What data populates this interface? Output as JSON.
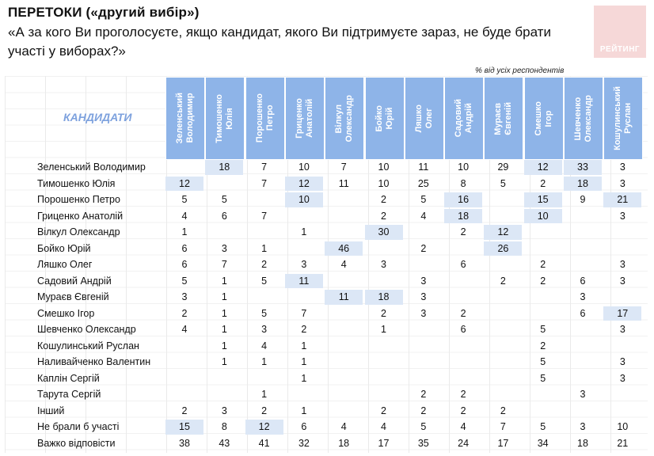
{
  "title": "ПЕРЕТОКИ («другий вибір»)",
  "question": "«А за кого Ви проголосуєте, якщо кандидат, якого Ви підтримуєте зараз, не буде брати участі у виборах?»",
  "logo_text": "РЕЙТИНГ",
  "note": "% від усіх респондентів",
  "candidates_label": "КАНДИДАТИ",
  "colors": {
    "header_bg": "#8eb4e8",
    "highlight": "#dce7f6",
    "label": "#7ea2de"
  },
  "columns": [
    "Зеленський Володимир",
    "Тимошенко Юлія",
    "Порошенко Петро",
    "Гриценко Анатолій",
    "Вілкул Олександр",
    "Бойко Юрій",
    "Ляшко Олег",
    "Садовий Андрій",
    "Мураєв Євгеній",
    "Смешко Ігор",
    "Шевченко Олександр",
    "Кошулинський Руслан"
  ],
  "rows": [
    {
      "name": "Зеленський Володимир",
      "values": [
        "",
        "18",
        "7",
        "10",
        "7",
        "10",
        "11",
        "10",
        "29",
        "12",
        "33",
        "3"
      ],
      "highlight": [
        1,
        9,
        10
      ]
    },
    {
      "name": "Тимошенко Юлія",
      "values": [
        "12",
        "",
        "7",
        "12",
        "11",
        "10",
        "25",
        "8",
        "5",
        "2",
        "18",
        "3"
      ],
      "highlight": [
        0,
        3,
        10
      ]
    },
    {
      "name": "Порошенко Петро",
      "values": [
        "5",
        "5",
        "",
        "10",
        "",
        "2",
        "5",
        "16",
        "",
        "15",
        "9",
        "21"
      ],
      "highlight": [
        3,
        7,
        9,
        11
      ]
    },
    {
      "name": "Гриценко Анатолій",
      "values": [
        "4",
        "6",
        "7",
        "",
        "",
        "2",
        "4",
        "18",
        "",
        "10",
        "",
        "3"
      ],
      "highlight": [
        7,
        9
      ]
    },
    {
      "name": "Вілкул Олександр",
      "values": [
        "1",
        "",
        "",
        "1",
        "",
        "30",
        "",
        "2",
        "12",
        "",
        "",
        ""
      ],
      "highlight": [
        5,
        8
      ]
    },
    {
      "name": "Бойко Юрій",
      "values": [
        "6",
        "3",
        "1",
        "",
        "46",
        "",
        "2",
        "",
        "26",
        "",
        "",
        ""
      ],
      "highlight": [
        4,
        8
      ]
    },
    {
      "name": "Ляшко Олег",
      "values": [
        "6",
        "7",
        "2",
        "3",
        "4",
        "3",
        "",
        "6",
        "",
        "2",
        "",
        "3"
      ],
      "highlight": []
    },
    {
      "name": "Садовий Андрій",
      "values": [
        "5",
        "1",
        "5",
        "11",
        "",
        "",
        "3",
        "",
        "2",
        "2",
        "6",
        "3"
      ],
      "highlight": [
        3
      ]
    },
    {
      "name": "Мураєв Євгеній",
      "values": [
        "3",
        "1",
        "",
        "",
        "11",
        "18",
        "3",
        "",
        "",
        "",
        "3",
        ""
      ],
      "highlight": [
        4,
        5
      ]
    },
    {
      "name": "Смешко Ігор",
      "values": [
        "2",
        "1",
        "5",
        "7",
        "",
        "2",
        "3",
        "2",
        "",
        "",
        "6",
        "17"
      ],
      "highlight": [
        11
      ]
    },
    {
      "name": "Шевченко Олександр",
      "values": [
        "4",
        "1",
        "3",
        "2",
        "",
        "1",
        "",
        "6",
        "",
        "5",
        "",
        "3"
      ],
      "highlight": []
    },
    {
      "name": "Кошулинський Руслан",
      "values": [
        "",
        "1",
        "4",
        "1",
        "",
        "",
        "",
        "",
        "",
        "2",
        "",
        ""
      ],
      "highlight": []
    },
    {
      "name": "Наливайченко Валентин",
      "values": [
        "",
        "1",
        "1",
        "1",
        "",
        "",
        "",
        "",
        "",
        "5",
        "",
        "3"
      ],
      "highlight": []
    },
    {
      "name": "Каплін Сергій",
      "values": [
        "",
        "",
        "",
        "1",
        "",
        "",
        "",
        "",
        "",
        "5",
        "",
        "3"
      ],
      "highlight": []
    },
    {
      "name": "Тарута Сергій",
      "values": [
        "",
        "",
        "1",
        "",
        "",
        "",
        "2",
        "2",
        "",
        "",
        "3",
        ""
      ],
      "highlight": []
    },
    {
      "name": "Інший",
      "values": [
        "2",
        "3",
        "2",
        "1",
        "",
        "2",
        "2",
        "2",
        "2",
        "",
        "",
        ""
      ],
      "highlight": []
    },
    {
      "name": "Не брали б участі",
      "values": [
        "15",
        "8",
        "12",
        "6",
        "4",
        "4",
        "5",
        "4",
        "7",
        "5",
        "3",
        "10"
      ],
      "highlight": [
        0,
        2
      ]
    },
    {
      "name": "Важко відповісти",
      "values": [
        "38",
        "43",
        "41",
        "32",
        "18",
        "17",
        "35",
        "24",
        "17",
        "34",
        "18",
        "21"
      ],
      "highlight": []
    }
  ]
}
